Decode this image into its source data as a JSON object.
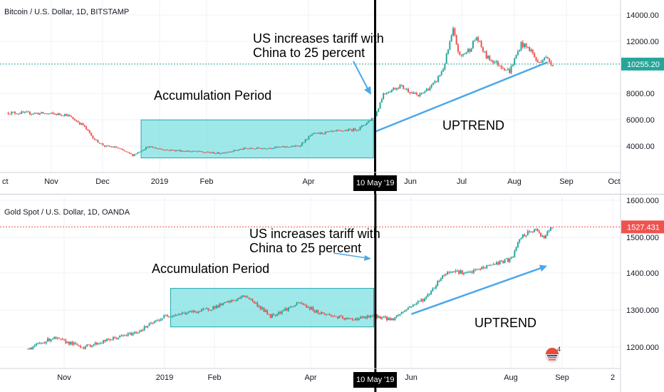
{
  "chart_data": [
    {
      "type": "candlestick",
      "title": "Bitcoin / U.S. Dollar, 1D, BITSTAMP",
      "x_ticks": [
        "ct",
        "Nov",
        "Dec",
        "2019",
        "Feb",
        "Apr",
        "10 May '19",
        "Jun",
        "Jul",
        "Aug",
        "Sep",
        "Oct"
      ],
      "y_ticks": [
        "14000.00",
        "12000.00",
        "8000.00",
        "6000.00",
        "4000.00"
      ],
      "ylim": [
        2500,
        14800
      ],
      "last_price": 10255.2,
      "last_price_label": "10255.20",
      "grid": true,
      "price_path": [
        {
          "x": "2018-10-01",
          "y": 6550
        },
        {
          "x": "2018-10-20",
          "y": 6500
        },
        {
          "x": "2018-11-05",
          "y": 6400
        },
        {
          "x": "2018-11-15",
          "y": 5600
        },
        {
          "x": "2018-11-22",
          "y": 4500
        },
        {
          "x": "2018-11-28",
          "y": 4000
        },
        {
          "x": "2018-12-05",
          "y": 3900
        },
        {
          "x": "2018-12-15",
          "y": 3300
        },
        {
          "x": "2018-12-24",
          "y": 3950
        },
        {
          "x": "2019-01-05",
          "y": 3700
        },
        {
          "x": "2019-01-20",
          "y": 3600
        },
        {
          "x": "2019-02-05",
          "y": 3450
        },
        {
          "x": "2019-02-20",
          "y": 3800
        },
        {
          "x": "2019-03-05",
          "y": 3850
        },
        {
          "x": "2019-03-25",
          "y": 4000
        },
        {
          "x": "2019-04-02",
          "y": 4900
        },
        {
          "x": "2019-04-15",
          "y": 5100
        },
        {
          "x": "2019-04-30",
          "y": 5300
        },
        {
          "x": "2019-05-10",
          "y": 6300
        },
        {
          "x": "2019-05-15",
          "y": 8000
        },
        {
          "x": "2019-05-25",
          "y": 8600
        },
        {
          "x": "2019-06-05",
          "y": 7800
        },
        {
          "x": "2019-06-15",
          "y": 8800
        },
        {
          "x": "2019-06-20",
          "y": 9900
        },
        {
          "x": "2019-06-26",
          "y": 12800
        },
        {
          "x": "2019-06-30",
          "y": 10800
        },
        {
          "x": "2019-07-06",
          "y": 11400
        },
        {
          "x": "2019-07-10",
          "y": 12300
        },
        {
          "x": "2019-07-16",
          "y": 10800
        },
        {
          "x": "2019-07-20",
          "y": 10500
        },
        {
          "x": "2019-07-30",
          "y": 9700
        },
        {
          "x": "2019-08-06",
          "y": 11800
        },
        {
          "x": "2019-08-12",
          "y": 11300
        },
        {
          "x": "2019-08-16",
          "y": 10300
        },
        {
          "x": "2019-08-20",
          "y": 10800
        },
        {
          "x": "2019-08-25",
          "y": 10255
        }
      ],
      "annotations": {
        "tariff_note_line1": "US increases tariff with",
        "tariff_note_line2": "China to 25 percent",
        "box_label": "Accumulation Period",
        "trend_label": "UPTREND"
      },
      "accumulation_box": {
        "x_start": "2018-12-20",
        "x_end": "2019-05-09",
        "y_low": 3100,
        "y_high": 6000
      },
      "trend_line": {
        "start": {
          "x": "2019-05-10",
          "y": 5100
        },
        "end": {
          "x": "2019-08-22",
          "y": 10400
        }
      }
    },
    {
      "type": "candlestick",
      "title": "Gold Spot / U.S. Dollar, 1D, OANDA",
      "x_ticks": [
        "Nov",
        "2019",
        "Feb",
        "Apr",
        "10 May '19",
        "Jun",
        "Aug",
        "Sep",
        "2"
      ],
      "y_ticks": [
        "1600.000",
        "1500.000",
        "1400.000",
        "1300.000",
        "1200.000"
      ],
      "ylim": [
        1160,
        1610
      ],
      "last_price": 1527.431,
      "last_price_label": "1527.431",
      "grid": true,
      "price_path": [
        {
          "x": "2018-10-10",
          "y": 1195
        },
        {
          "x": "2018-10-25",
          "y": 1225
        },
        {
          "x": "2018-11-13",
          "y": 1200
        },
        {
          "x": "2018-11-30",
          "y": 1222
        },
        {
          "x": "2018-12-15",
          "y": 1240
        },
        {
          "x": "2019-01-02",
          "y": 1285
        },
        {
          "x": "2019-01-25",
          "y": 1300
        },
        {
          "x": "2019-02-05",
          "y": 1315
        },
        {
          "x": "2019-02-20",
          "y": 1340
        },
        {
          "x": "2019-03-07",
          "y": 1285
        },
        {
          "x": "2019-03-25",
          "y": 1320
        },
        {
          "x": "2019-04-05",
          "y": 1295
        },
        {
          "x": "2019-04-23",
          "y": 1275
        },
        {
          "x": "2019-05-03",
          "y": 1280
        },
        {
          "x": "2019-05-10",
          "y": 1285
        },
        {
          "x": "2019-05-20",
          "y": 1275
        },
        {
          "x": "2019-05-31",
          "y": 1310
        },
        {
          "x": "2019-06-10",
          "y": 1335
        },
        {
          "x": "2019-06-20",
          "y": 1395
        },
        {
          "x": "2019-06-26",
          "y": 1410
        },
        {
          "x": "2019-07-05",
          "y": 1400
        },
        {
          "x": "2019-07-20",
          "y": 1425
        },
        {
          "x": "2019-08-01",
          "y": 1440
        },
        {
          "x": "2019-08-07",
          "y": 1500
        },
        {
          "x": "2019-08-15",
          "y": 1520
        },
        {
          "x": "2019-08-21",
          "y": 1500
        },
        {
          "x": "2019-08-26",
          "y": 1527
        }
      ],
      "annotations": {
        "tariff_note_line1": "US increases tariff with",
        "tariff_note_line2": "China to 25 percent",
        "box_label": "Accumulation Period",
        "trend_label": "UPTREND",
        "logo_badge": "4"
      },
      "accumulation_box": {
        "x_start": "2019-01-05",
        "x_end": "2019-05-09",
        "y_low": 1255,
        "y_high": 1360
      },
      "trend_line": {
        "start": {
          "x": "2019-06-01",
          "y": 1290
        },
        "end": {
          "x": "2019-08-22",
          "y": 1420
        }
      }
    }
  ],
  "colors": {
    "up": "#26a69a",
    "down": "#ef5350",
    "box_fill": "#7fe0e3",
    "box_stroke": "#20a8ad",
    "annotation_arrow": "#4aa8e8",
    "btc_price_line": "#26a69a",
    "gold_price_line": "#ef5350",
    "event_line": "#000000"
  }
}
